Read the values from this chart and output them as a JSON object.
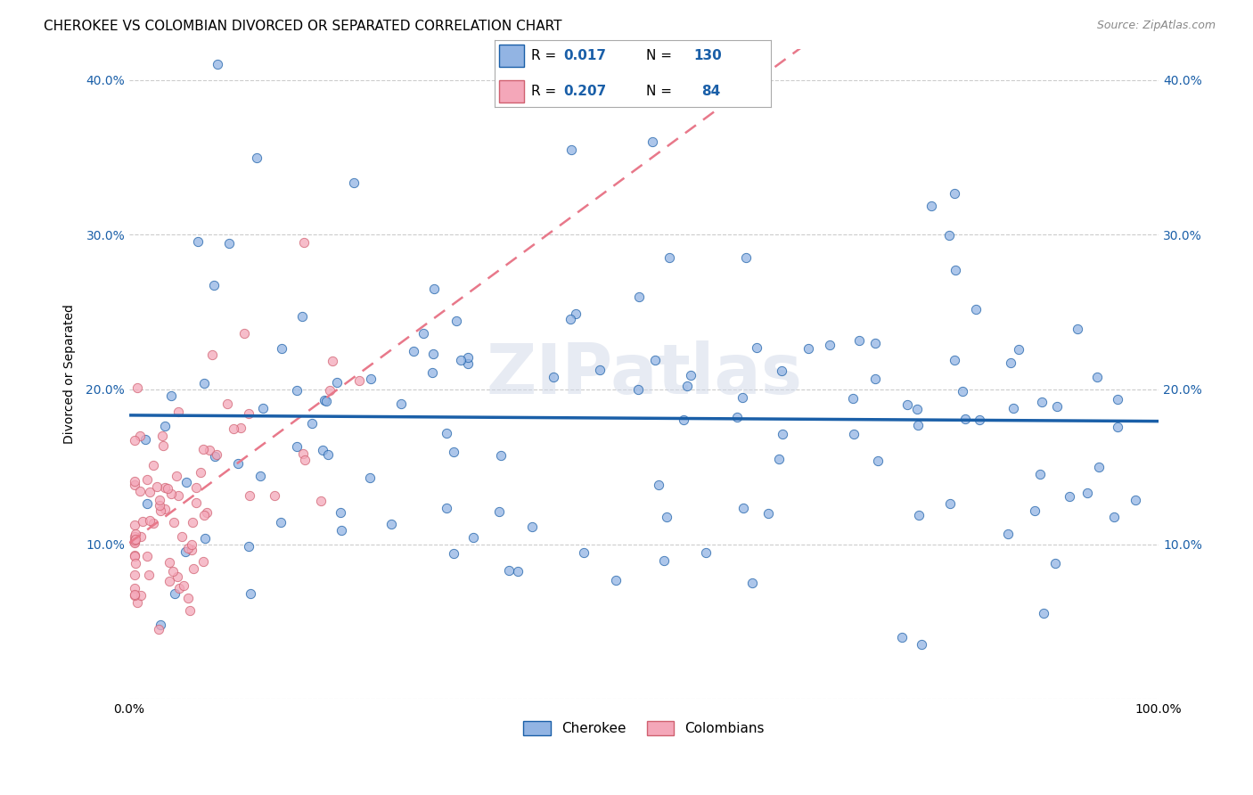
{
  "title": "CHEROKEE VS COLOMBIAN DIVORCED OR SEPARATED CORRELATION CHART",
  "source": "Source: ZipAtlas.com",
  "ylabel": "Divorced or Separated",
  "xlim": [
    0.0,
    1.0
  ],
  "ylim": [
    0.0,
    0.42
  ],
  "yticks": [
    0.0,
    0.1,
    0.2,
    0.3,
    0.4
  ],
  "ytick_labels": [
    "",
    "10.0%",
    "20.0%",
    "30.0%",
    "40.0%"
  ],
  "cherokee_R": 0.017,
  "cherokee_N": 130,
  "colombian_R": 0.207,
  "colombian_N": 84,
  "cherokee_color": "#92b4e3",
  "colombian_color": "#f4a7b9",
  "cherokee_line_color": "#1a5fa8",
  "colombian_line_color": "#e8788a",
  "watermark": "ZIPatlas",
  "background_color": "#ffffff",
  "grid_color": "#cccccc",
  "legend_label_cherokee": "Cherokee",
  "legend_label_colombian": "Colombians",
  "title_fontsize": 11,
  "axis_label_fontsize": 10,
  "tick_fontsize": 10
}
